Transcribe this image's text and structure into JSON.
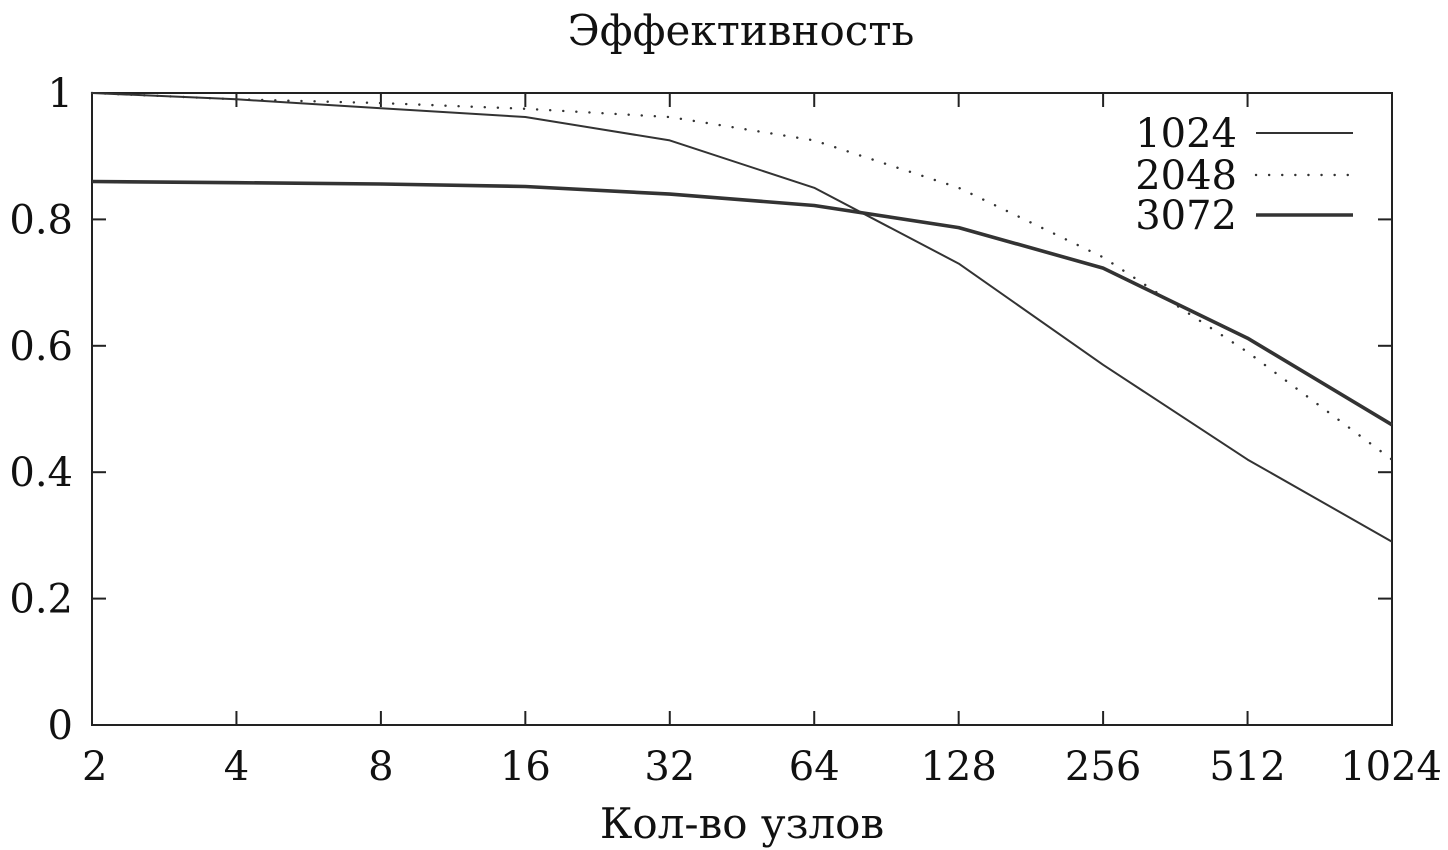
{
  "chart_data": {
    "type": "line",
    "title": "Эффективность",
    "xlabel": "Кол-во узлов",
    "ylabel": "",
    "x_scale": "log2",
    "x": [
      2,
      4,
      8,
      16,
      32,
      64,
      128,
      256,
      512,
      1024
    ],
    "x_tick_labels": [
      "2",
      "4",
      "8",
      "16",
      "32",
      "64",
      "128",
      "256",
      "512",
      "1024"
    ],
    "y_ticks": [
      0,
      0.2,
      0.4,
      0.6,
      0.8,
      1
    ],
    "y_tick_labels": [
      "0",
      "0.2",
      "0.4",
      "0.6",
      "0.8",
      "1"
    ],
    "xlim": [
      2,
      1024
    ],
    "ylim": [
      0,
      1
    ],
    "grid": false,
    "legend_position": "top-right",
    "series": [
      {
        "name": "1024",
        "style": "thin-solid",
        "values": [
          1.0,
          0.99,
          0.976,
          0.962,
          0.925,
          0.85,
          0.73,
          0.57,
          0.42,
          0.29
        ]
      },
      {
        "name": "2048",
        "style": "dotted",
        "values": [
          1.0,
          0.99,
          0.984,
          0.975,
          0.962,
          0.925,
          0.85,
          0.74,
          0.59,
          0.42
        ]
      },
      {
        "name": "3072",
        "style": "thick-solid",
        "values": [
          0.86,
          0.858,
          0.856,
          0.852,
          0.84,
          0.822,
          0.787,
          0.723,
          0.612,
          0.475
        ]
      }
    ],
    "colors": {
      "line": "#333333",
      "axis": "#222222",
      "background": "#ffffff"
    }
  }
}
